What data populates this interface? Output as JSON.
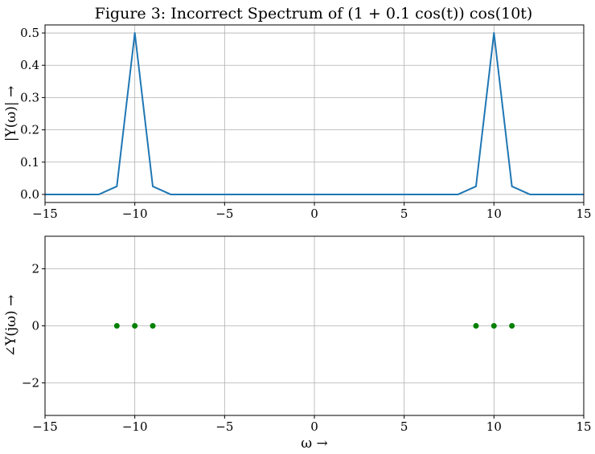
{
  "figure": {
    "title": "Figure 3: Incorrect Spectrum of (1 + 0.1 cos(t)) cos(10t)"
  },
  "chart_data": [
    {
      "type": "line",
      "title": "Figure 3: Incorrect Spectrum of (1 + 0.1 cos(t)) cos(10t)",
      "xlabel": "",
      "ylabel": "|Y(ω)| →",
      "xlim": [
        -15,
        15
      ],
      "ylim": [
        -0.025,
        0.525
      ],
      "xticks": [
        -15,
        -10,
        -5,
        0,
        5,
        10,
        15
      ],
      "xtick_labels": [
        "−15",
        "−10",
        "−5",
        "0",
        "5",
        "10",
        "15"
      ],
      "yticks": [
        0.0,
        0.1,
        0.2,
        0.3,
        0.4,
        0.5
      ],
      "ytick_labels": [
        "0.0",
        "0.1",
        "0.2",
        "0.3",
        "0.4",
        "0.5"
      ],
      "grid": true,
      "series": [
        {
          "color": "#1f77b4",
          "x": [
            -15,
            -14,
            -13,
            -12,
            -11,
            -10,
            -9,
            -8,
            -7,
            -6,
            -5,
            -4,
            -3,
            -2,
            -1,
            0,
            1,
            2,
            3,
            4,
            5,
            6,
            7,
            8,
            9,
            10,
            11,
            12,
            13,
            14,
            15
          ],
          "y": [
            0,
            0,
            0,
            0,
            0.025,
            0.5,
            0.025,
            0,
            0,
            0,
            0,
            0,
            0,
            0,
            0,
            0,
            0,
            0,
            0,
            0,
            0,
            0,
            0,
            0,
            0.025,
            0.5,
            0.025,
            0,
            0,
            0,
            0
          ]
        }
      ]
    },
    {
      "type": "scatter",
      "xlabel": "ω →",
      "ylabel": "∠Y(jω) →",
      "xlim": [
        -15,
        15
      ],
      "ylim": [
        -3.1416,
        3.1416
      ],
      "xticks": [
        -15,
        -10,
        -5,
        0,
        5,
        10,
        15
      ],
      "xtick_labels": [
        "−15",
        "−10",
        "−5",
        "0",
        "5",
        "10",
        "15"
      ],
      "yticks": [
        -2,
        0,
        2
      ],
      "ytick_labels": [
        "−2",
        "0",
        "2"
      ],
      "grid": true,
      "series": [
        {
          "color": "#008000",
          "x": [
            -11,
            -10,
            -9,
            9,
            10,
            11
          ],
          "y": [
            0,
            0,
            0,
            0,
            0,
            0
          ]
        }
      ]
    }
  ]
}
